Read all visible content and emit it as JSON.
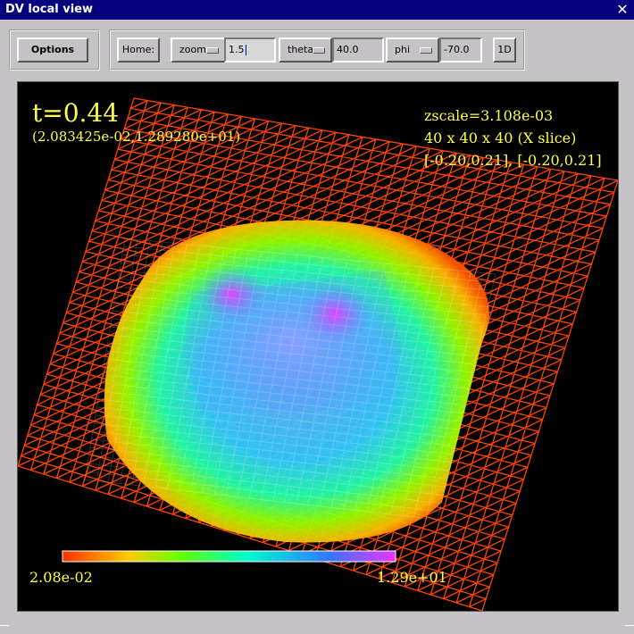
{
  "window": {
    "title": "DV local view",
    "close_glyph": "✕"
  },
  "toolbar": {
    "options_label": "Options",
    "home_label": "Home:",
    "zoom": {
      "label": "zoom",
      "value": "1.5"
    },
    "theta": {
      "label": "theta",
      "value": "40.0"
    },
    "phi": {
      "label": "phi",
      "value": "-70.0"
    },
    "mode_label": "1D"
  },
  "view": {
    "time_label": "t=0.44",
    "range_label": "(2.083425e-02,1.289280e+01)",
    "zscale_label": "zscale=3.108e-03",
    "grid_label": "40 x 40 x 40 (X slice)",
    "bounds_label": "[-0.20,0.21], [-0.20,0.21]",
    "colorbar": {
      "min_label": "2.08e-02",
      "max_label": "1.29e+01"
    }
  },
  "colors": {
    "titlebar": "#04007e",
    "overlay_text": "#ffff44",
    "mesh_low": "#ff4400",
    "mesh_high": "#c040ff"
  },
  "icons": {
    "close": "close-icon",
    "menu_indicator": "option-menu-indicator-icon"
  }
}
